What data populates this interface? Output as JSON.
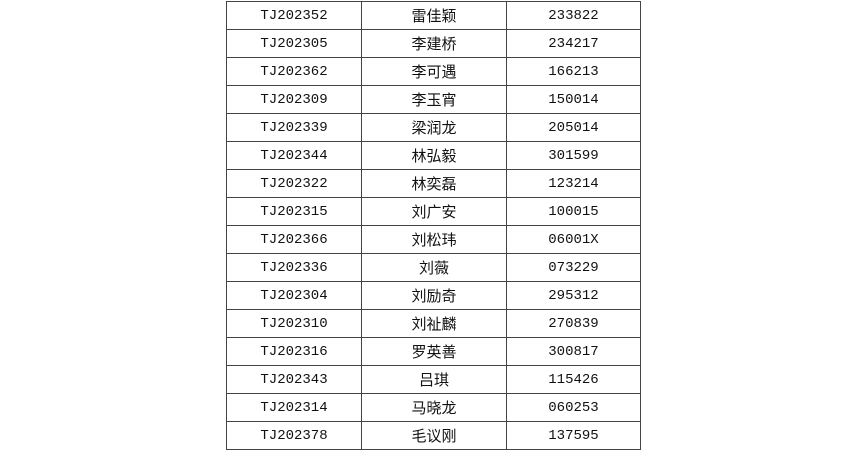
{
  "table": {
    "rows": [
      [
        "TJ202352",
        "雷佳颖",
        "233822"
      ],
      [
        "TJ202305",
        "李建桥",
        "234217"
      ],
      [
        "TJ202362",
        "李可遇",
        "166213"
      ],
      [
        "TJ202309",
        "李玉宵",
        "150014"
      ],
      [
        "TJ202339",
        "梁润龙",
        "205014"
      ],
      [
        "TJ202344",
        "林弘毅",
        "301599"
      ],
      [
        "TJ202322",
        "林奕磊",
        "123214"
      ],
      [
        "TJ202315",
        "刘广安",
        "100015"
      ],
      [
        "TJ202366",
        "刘松玮",
        "06001X"
      ],
      [
        "TJ202336",
        "刘薇",
        "073229"
      ],
      [
        "TJ202304",
        "刘励奇",
        "295312"
      ],
      [
        "TJ202310",
        "刘祉麟",
        "270839"
      ],
      [
        "TJ202316",
        "罗英善",
        "300817"
      ],
      [
        "TJ202343",
        "吕琪",
        "115426"
      ],
      [
        "TJ202314",
        "马晓龙",
        "060253"
      ],
      [
        "TJ202378",
        "毛议刚",
        "137595"
      ]
    ]
  }
}
